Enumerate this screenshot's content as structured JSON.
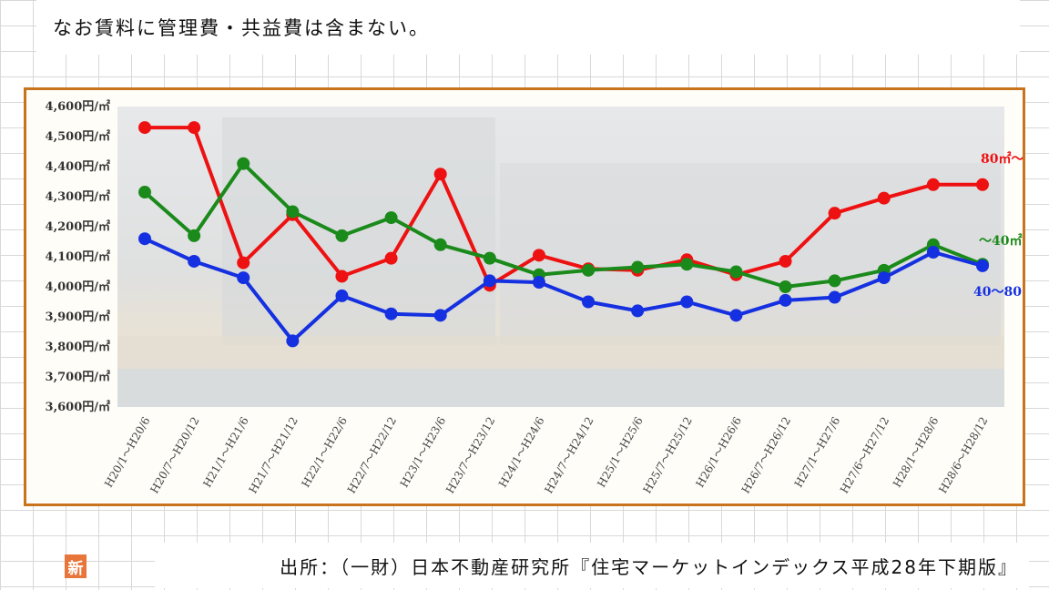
{
  "note": "なお賃料に管理費・共益費は含まない。",
  "source": "出所：（一財）日本不動産研究所『住宅マーケットインデックス平成28年下期版』",
  "badge": "新",
  "colors": {
    "frame": "#c8741c",
    "series_red": "#ee1111",
    "series_green": "#1a8a1a",
    "series_blue": "#1530e0"
  },
  "chart_data": {
    "type": "line",
    "ylim": [
      3600,
      4600
    ],
    "y_ticks": [
      {
        "value": 4600,
        "label": "4,600円/㎡"
      },
      {
        "value": 4500,
        "label": "4,500円/㎡"
      },
      {
        "value": 4400,
        "label": "4,400円/㎡"
      },
      {
        "value": 4300,
        "label": "4,300円/㎡"
      },
      {
        "value": 4200,
        "label": "4,200円/㎡"
      },
      {
        "value": 4100,
        "label": "4,100円/㎡"
      },
      {
        "value": 4000,
        "label": "4,000円/㎡"
      },
      {
        "value": 3900,
        "label": "3,900円/㎡"
      },
      {
        "value": 3800,
        "label": "3,800円/㎡"
      },
      {
        "value": 3700,
        "label": "3,700円/㎡"
      },
      {
        "value": 3600,
        "label": "3,600円/㎡"
      }
    ],
    "categories": [
      "H20/1～H20/6",
      "H20/7～H20/12",
      "H21/1～H21/6",
      "H21/7～H21/12",
      "H22/1～H22/6",
      "H22/7～H22/12",
      "H23/1～H23/6",
      "H23/7～H23/12",
      "H24/1～H24/6",
      "H24/7～H24/12",
      "H25/1～H25/6",
      "H25/7～H25/12",
      "H26/1～H26/6",
      "H26/7～H26/12",
      "H27/1～H27/6",
      "H27/6～H27/12",
      "H28/1～H28/6",
      "H28/6～H28/12"
    ],
    "series": [
      {
        "name": "80㎡～",
        "color": "#ee1111",
        "values": [
          4530,
          4530,
          4080,
          4240,
          4035,
          4095,
          4375,
          4005,
          4105,
          4060,
          4055,
          4090,
          4040,
          4085,
          4245,
          4295,
          4340,
          4340
        ]
      },
      {
        "name": "～40㎡",
        "color": "#1a8a1a",
        "values": [
          4315,
          4170,
          4410,
          4250,
          4170,
          4230,
          4140,
          4095,
          4040,
          4055,
          4065,
          4075,
          4050,
          4000,
          4020,
          4055,
          4140,
          4075
        ]
      },
      {
        "name": "40～80㎡",
        "color": "#1530e0",
        "values": [
          4160,
          4085,
          4030,
          3820,
          3970,
          3910,
          3905,
          4020,
          4015,
          3950,
          3920,
          3950,
          3905,
          3955,
          3965,
          4030,
          4115,
          4070
        ]
      }
    ]
  }
}
